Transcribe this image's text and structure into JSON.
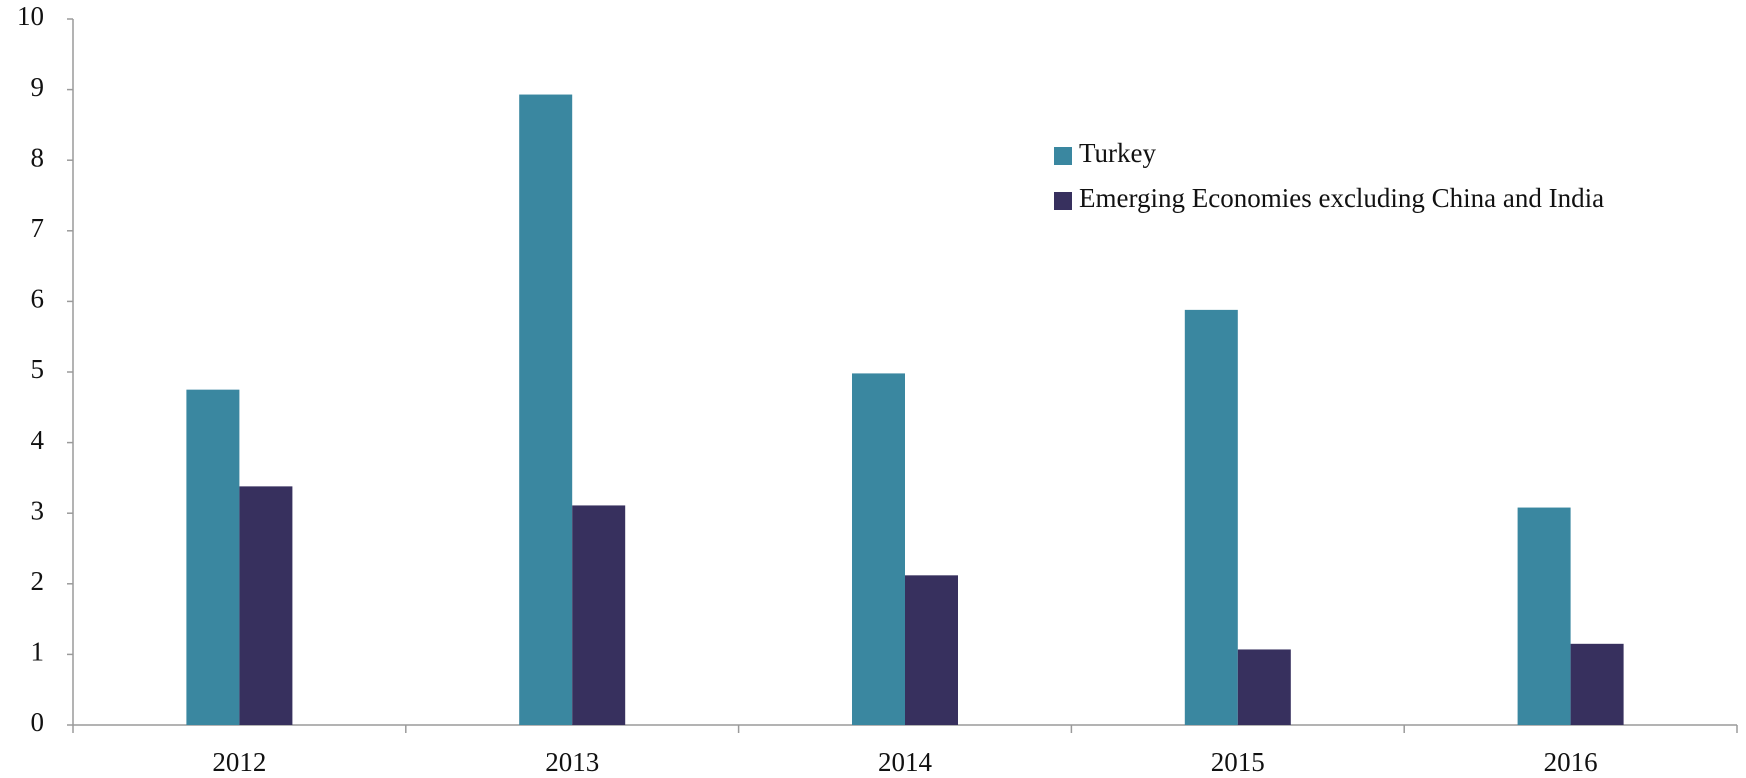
{
  "chart_data": {
    "type": "bar",
    "categories": [
      "2012",
      "2013",
      "2014",
      "2015",
      "2016"
    ],
    "series": [
      {
        "name": "Turkey",
        "color": "#3a87a0",
        "values": [
          4.75,
          8.93,
          4.98,
          5.88,
          3.08
        ]
      },
      {
        "name": "Emerging Economies excluding China and India",
        "color": "#37305e",
        "values": [
          3.38,
          3.11,
          2.12,
          1.07,
          1.15
        ]
      }
    ],
    "ylim": [
      0,
      10
    ],
    "yticks": [
      0,
      1,
      2,
      3,
      4,
      5,
      6,
      7,
      8,
      9,
      10
    ],
    "grid": false,
    "legend": "top-right"
  }
}
